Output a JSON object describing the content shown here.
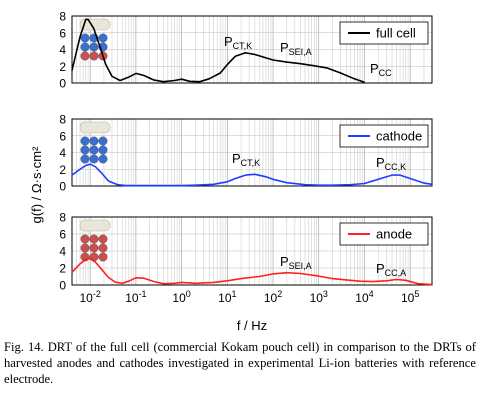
{
  "chart_data": [
    {
      "type": "line",
      "panel": "full cell",
      "xscale": "log",
      "xlim": [
        0.004,
        300000
      ],
      "ylim": [
        0,
        8
      ],
      "yticks": [
        0,
        2,
        4,
        6,
        8
      ],
      "series": [
        {
          "name": "full cell",
          "color": "#000000",
          "x": [
            0.004,
            0.006,
            0.008,
            0.009,
            0.012,
            0.016,
            0.022,
            0.03,
            0.045,
            0.07,
            0.1,
            0.15,
            0.25,
            0.4,
            0.7,
            1,
            1.5,
            2.5,
            4,
            7,
            10,
            15,
            25,
            40,
            70,
            100,
            200,
            400,
            800,
            1500,
            3000,
            6000,
            10000
          ],
          "values": [
            1.5,
            5.5,
            7.6,
            7.6,
            6.5,
            4.5,
            2.2,
            0.8,
            0.3,
            0.7,
            1.15,
            0.9,
            0.35,
            0.15,
            0.3,
            0.45,
            0.2,
            0.15,
            0.5,
            1.2,
            2.2,
            3.2,
            3.6,
            3.4,
            3.0,
            2.75,
            2.5,
            2.3,
            2.05,
            1.8,
            1.2,
            0.5,
            0.1
          ]
        }
      ],
      "annotations": [
        {
          "main": "P",
          "sub": "CT,K"
        },
        {
          "main": "P",
          "sub": "SEI,A"
        },
        {
          "main": "P",
          "sub": "CC"
        }
      ]
    },
    {
      "type": "line",
      "panel": "cathode",
      "xscale": "log",
      "xlim": [
        0.004,
        300000
      ],
      "ylim": [
        0,
        8
      ],
      "yticks": [
        0,
        2,
        4,
        6,
        8
      ],
      "series": [
        {
          "name": "cathode",
          "color": "#1f3fff",
          "x": [
            0.004,
            0.006,
            0.008,
            0.01,
            0.013,
            0.018,
            0.025,
            0.04,
            0.06,
            0.1,
            0.2,
            0.5,
            1,
            2,
            5,
            10,
            15,
            25,
            40,
            70,
            100,
            200,
            500,
            1000,
            2000,
            5000,
            10000,
            20000,
            40000,
            60000,
            100000,
            200000,
            300000
          ],
          "values": [
            1.3,
            2.0,
            2.45,
            2.6,
            2.3,
            1.5,
            0.6,
            0.15,
            0.05,
            0.05,
            0.05,
            0.05,
            0.05,
            0.1,
            0.2,
            0.5,
            0.9,
            1.3,
            1.4,
            1.1,
            0.8,
            0.4,
            0.15,
            0.1,
            0.1,
            0.15,
            0.3,
            0.8,
            1.3,
            1.3,
            0.9,
            0.35,
            0.2
          ]
        }
      ],
      "annotations": [
        {
          "main": "P",
          "sub": "CT,K"
        },
        {
          "main": "P",
          "sub": "CC,K"
        }
      ]
    },
    {
      "type": "line",
      "panel": "anode",
      "xscale": "log",
      "xlim": [
        0.004,
        300000
      ],
      "ylim": [
        0,
        8
      ],
      "yticks": [
        0,
        2,
        4,
        6,
        8
      ],
      "series": [
        {
          "name": "anode",
          "color": "#ff2020",
          "x": [
            0.004,
            0.006,
            0.008,
            0.01,
            0.013,
            0.018,
            0.025,
            0.035,
            0.05,
            0.07,
            0.1,
            0.15,
            0.25,
            0.4,
            0.7,
            1,
            2,
            5,
            10,
            20,
            50,
            100,
            200,
            400,
            1000,
            2000,
            4000,
            8000,
            15000,
            30000,
            50000,
            80000,
            150000,
            300000
          ],
          "values": [
            1.5,
            2.5,
            3.0,
            3.1,
            2.7,
            1.8,
            0.9,
            0.35,
            0.2,
            0.45,
            0.85,
            0.8,
            0.4,
            0.15,
            0.2,
            0.3,
            0.2,
            0.3,
            0.5,
            0.75,
            1.0,
            1.3,
            1.45,
            1.35,
            1.05,
            0.75,
            0.6,
            0.45,
            0.4,
            0.5,
            0.65,
            0.55,
            0.15,
            0.05
          ]
        }
      ],
      "annotations": [
        {
          "main": "P",
          "sub": "SEI,A"
        },
        {
          "main": "P",
          "sub": "CC,A"
        }
      ]
    }
  ],
  "axes": {
    "ylabel": "g(f) / Ω·s·cm²",
    "xlabel": "f / Hz",
    "xtick_base": "10",
    "xtick_exponents": [
      "-2",
      "-1",
      "0",
      "1",
      "2",
      "3",
      "4",
      "5"
    ]
  },
  "caption": "Fig. 14.   DRT of the full cell (commercial Kokam pouch cell) in comparison to the DRTs of harvested anodes and cathodes investigated in experimental Li-ion batteries with reference electrode."
}
